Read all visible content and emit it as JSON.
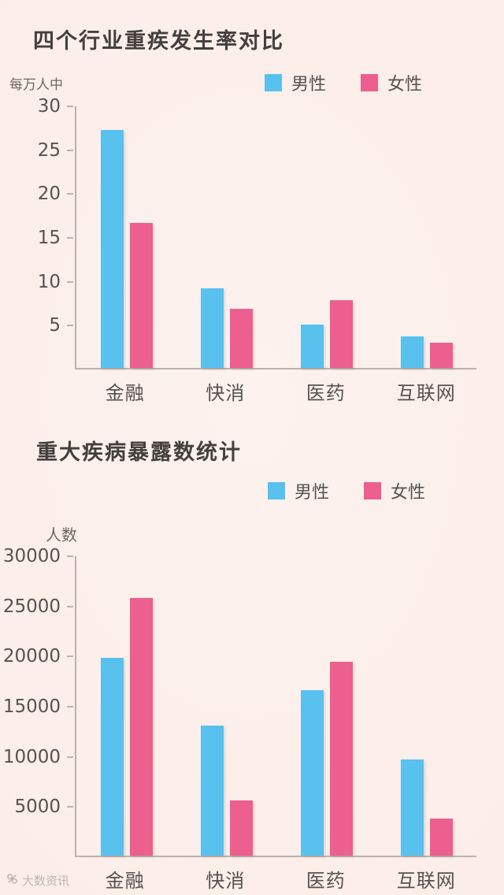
{
  "page": {
    "background": "#fbece7",
    "watermark": "大数资讯"
  },
  "colors": {
    "male_bar": "#58c1ee",
    "female_bar": "#ed5f8f",
    "axis": "#b9b3ae",
    "text": "#56524f"
  },
  "chart_data": [
    {
      "type": "bar",
      "title": "四个行业重疾发生率对比",
      "unit_label": "每万人中",
      "categories": [
        "金融",
        "快消",
        "医药",
        "互联网"
      ],
      "series": [
        {
          "name": "男性",
          "color": "#58c1ee",
          "values": [
            27.3,
            9.1,
            5.0,
            3.6
          ]
        },
        {
          "name": "女性",
          "color": "#ed5f8f",
          "values": [
            16.6,
            6.8,
            7.8,
            2.9
          ]
        }
      ],
      "ylim": [
        0,
        30
      ],
      "ystep": 5,
      "grid": false,
      "legend_position": "top-right"
    },
    {
      "type": "bar",
      "title": "重大疾病暴露数统计",
      "unit_label": "人数",
      "categories": [
        "金融",
        "快消",
        "医药",
        "互联网"
      ],
      "series": [
        {
          "name": "男性",
          "color": "#58c1ee",
          "values": [
            19800,
            13000,
            16600,
            9600
          ]
        },
        {
          "name": "女性",
          "color": "#ed5f8f",
          "values": [
            25800,
            5500,
            19400,
            3700
          ]
        }
      ],
      "ylim": [
        0,
        30000
      ],
      "ystep": 5000,
      "grid": false,
      "legend_position": "top-right"
    }
  ]
}
